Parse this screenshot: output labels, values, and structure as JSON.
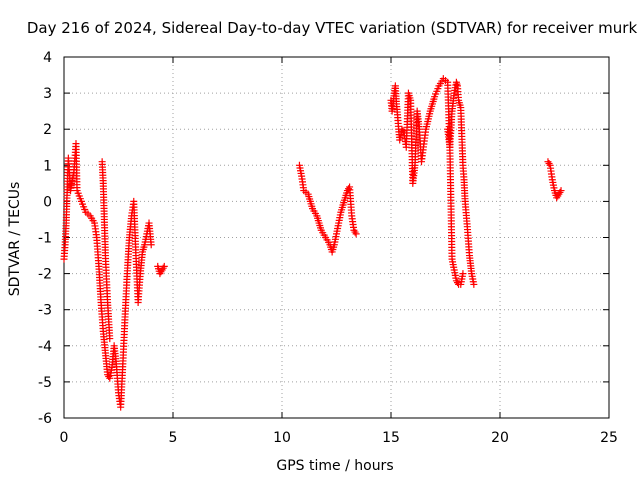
{
  "chart_data": {
    "type": "scatter",
    "title": "Day 216 of 2024, Sidereal Day-to-day VTEC variation (SDTVAR) for receiver murk",
    "xlabel": "GPS time / hours",
    "ylabel": "SDTVAR / TECUs",
    "xlim": [
      0,
      25
    ],
    "ylim": [
      -6,
      4
    ],
    "xticks": [
      "0",
      "5",
      "10",
      "15",
      "20",
      "25"
    ],
    "yticks": [
      "-6",
      "-5",
      "-4",
      "-3",
      "-2",
      "-1",
      "0",
      "1",
      "2",
      "3",
      "4"
    ],
    "grid": true,
    "marker": "+",
    "series": [
      {
        "name": "SDTVAR",
        "color": "#ff0000",
        "segments": [
          {
            "x": [
              0.0,
              0.05,
              0.1,
              0.15,
              0.2,
              0.3,
              0.35,
              0.45,
              0.55,
              0.6,
              0.8,
              1.0,
              1.2,
              1.4,
              1.5,
              1.6,
              1.7,
              1.8,
              1.9,
              2.0,
              2.1,
              2.2,
              2.3,
              2.4,
              2.5,
              2.6,
              2.7,
              2.8,
              2.9,
              3.0,
              3.1,
              3.2,
              3.3,
              3.4,
              3.5,
              3.6,
              3.7,
              3.8,
              3.9,
              4.0
            ],
            "y": [
              -1.6,
              -1.2,
              -0.6,
              0.4,
              1.2,
              0.3,
              0.5,
              0.8,
              1.6,
              0.3,
              0.0,
              -0.3,
              -0.4,
              -0.6,
              -1.0,
              -1.8,
              -2.8,
              -3.6,
              -4.2,
              -4.8,
              -4.9,
              -4.6,
              -4.0,
              -4.5,
              -5.3,
              -5.7,
              -4.5,
              -3.2,
              -2.0,
              -1.0,
              -0.4,
              0.0,
              -1.5,
              -2.8,
              -2.0,
              -1.4,
              -1.2,
              -0.9,
              -0.6,
              -1.2
            ]
          },
          {
            "x": [
              1.75,
              1.8,
              1.85,
              1.9,
              2.0,
              2.1
            ],
            "y": [
              1.1,
              0.5,
              -0.5,
              -1.5,
              -2.8,
              -3.8
            ]
          },
          {
            "x": [
              4.3,
              4.4,
              4.5,
              4.6
            ],
            "y": [
              -1.8,
              -2.0,
              -1.9,
              -1.8
            ]
          },
          {
            "x": [
              10.8,
              10.9,
              11.0,
              11.2,
              11.4,
              11.6,
              11.8,
              12.0,
              12.2,
              12.3,
              12.4,
              12.5,
              12.6,
              12.7,
              12.8,
              12.9,
              13.0,
              13.1,
              13.2,
              13.3,
              13.4
            ],
            "y": [
              1.0,
              0.7,
              0.3,
              0.2,
              -0.2,
              -0.4,
              -0.8,
              -1.0,
              -1.2,
              -1.4,
              -1.2,
              -0.9,
              -0.6,
              -0.3,
              -0.1,
              0.1,
              0.3,
              0.4,
              -0.4,
              -0.8,
              -0.9
            ]
          },
          {
            "x": [
              15.0,
              15.05,
              15.1,
              15.15,
              15.2,
              15.25,
              15.3,
              15.35,
              15.4,
              15.5,
              15.6,
              15.7,
              15.8,
              15.9,
              16.0,
              16.1,
              16.2,
              16.3,
              16.4,
              16.6,
              16.8,
              17.0,
              17.2,
              17.4,
              17.6,
              17.7,
              17.8,
              17.9,
              18.0,
              18.05,
              18.1,
              18.2,
              18.3,
              18.35,
              18.4,
              18.5,
              18.6,
              18.7,
              18.8
            ],
            "y": [
              2.8,
              2.5,
              2.7,
              3.0,
              3.2,
              2.7,
              2.4,
              2.0,
              1.7,
              2.0,
              1.9,
              1.5,
              3.0,
              2.8,
              0.5,
              1.0,
              2.5,
              2.0,
              1.1,
              2.0,
              2.5,
              2.9,
              3.2,
              3.4,
              3.3,
              1.5,
              2.5,
              3.0,
              3.3,
              3.2,
              2.8,
              2.6,
              1.0,
              0.6,
              0.0,
              -0.7,
              -1.5,
              -2.0,
              -2.3
            ]
          },
          {
            "x": [
              17.6,
              17.7,
              17.8,
              17.9,
              18.0,
              18.1,
              18.2,
              18.3
            ],
            "y": [
              2.0,
              1.5,
              -1.6,
              -1.9,
              -2.2,
              -2.3,
              -2.3,
              -2.0
            ]
          },
          {
            "x": [
              22.2,
              22.3,
              22.4,
              22.5,
              22.6,
              22.7,
              22.8
            ],
            "y": [
              1.1,
              1.0,
              0.6,
              0.3,
              0.1,
              0.2,
              0.3
            ]
          }
        ]
      }
    ]
  }
}
